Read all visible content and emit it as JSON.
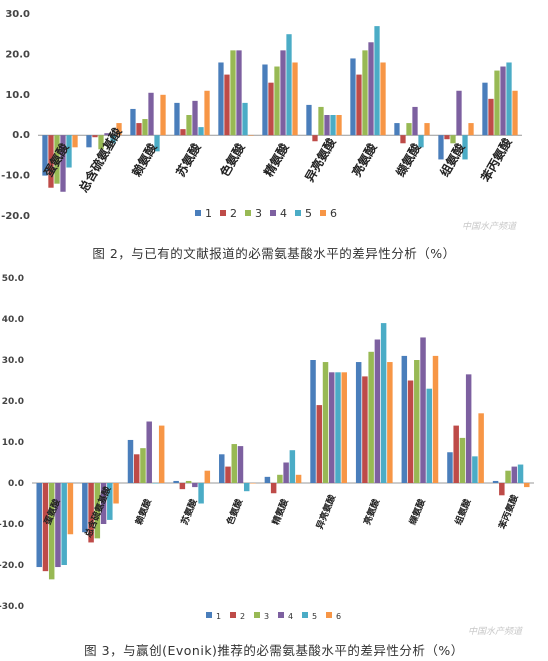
{
  "colors": [
    "#4A7EBB",
    "#BE4B48",
    "#98B954",
    "#7D60A0",
    "#4BACC6",
    "#F79646"
  ],
  "captions": {
    "fig2": "图 2，与已有的文献报道的必需氨基酸水平的差异性分析（%）",
    "fig3": "图 3，与赢创(Evonik)推荐的必需氨基酸水平的差异性分析（%）"
  },
  "watermark": "中国水产频道",
  "chart_data": [
    {
      "type": "bar",
      "title": "",
      "xlabel": "",
      "ylabel": "",
      "ylim": [
        -20,
        30
      ],
      "yticks": [
        "-20.0",
        "-10.0",
        "0.0",
        "10.0",
        "20.0",
        "30.0"
      ],
      "grid": false,
      "legend": "bottom",
      "legend_labels": [
        "1",
        "2",
        "3",
        "4",
        "5",
        "6"
      ],
      "categories": [
        "蛋氨酸",
        "总含硫氨基酸",
        "赖氨酸",
        "苏氨酸",
        "色氨酸",
        "精氨酸",
        "异亮氨酸",
        "亮氨酸",
        "缬氨酸",
        "组氨酸",
        "苯丙氨酸"
      ],
      "series": [
        {
          "values": [
            -10,
            -3,
            6.5,
            8,
            18,
            17.5,
            7.5,
            19,
            3,
            -6,
            13
          ]
        },
        {
          "values": [
            -13,
            -0.5,
            3,
            1.5,
            15,
            13,
            -1.5,
            15,
            -2,
            -1,
            9
          ]
        },
        {
          "values": [
            -12,
            -3.5,
            4,
            5,
            21,
            17,
            7,
            21,
            3,
            -2,
            16
          ]
        },
        {
          "values": [
            -14,
            0.5,
            10.5,
            8.5,
            21,
            21,
            5,
            23,
            7,
            11,
            17
          ]
        },
        {
          "values": [
            -8,
            -2,
            -4,
            2,
            8,
            25,
            5,
            27,
            -3,
            -6,
            18
          ]
        },
        {
          "values": [
            -3,
            3,
            10,
            11,
            0,
            18,
            5,
            18,
            3,
            3,
            11
          ]
        }
      ]
    },
    {
      "type": "bar",
      "title": "",
      "xlabel": "",
      "ylabel": "",
      "ylim": [
        -30,
        50
      ],
      "yticks": [
        "-30.0",
        "-20.0",
        "-10.0",
        "0.0",
        "10.0",
        "20.0",
        "30.0",
        "40.0",
        "50.0"
      ],
      "grid": false,
      "legend": "bottom",
      "legend_labels": [
        "1",
        "2",
        "3",
        "4",
        "5",
        "6"
      ],
      "categories": [
        "蛋氨酸",
        "总含硫氨基酸",
        "赖氨酸",
        "苏氨酸",
        "色氨酸",
        "精氨酸",
        "异亮氨酸",
        "亮氨酸",
        "缬氨酸",
        "组氨酸",
        "苯丙氨酸"
      ],
      "series": [
        {
          "values": [
            -20.5,
            -12,
            10.5,
            0.5,
            7,
            1.5,
            30,
            29.5,
            31,
            7.5,
            0.5
          ]
        },
        {
          "values": [
            -21.5,
            -14.5,
            7,
            -1.5,
            4,
            -2.5,
            19,
            26,
            25,
            14,
            -3
          ]
        },
        {
          "values": [
            -23.5,
            -13.5,
            8.5,
            0.5,
            9.5,
            2,
            29.5,
            32,
            30,
            11,
            3
          ]
        },
        {
          "values": [
            -20.5,
            -10,
            15,
            -1,
            9,
            5,
            27,
            35,
            35.5,
            26.5,
            4
          ]
        },
        {
          "values": [
            -20,
            -9,
            0,
            -5,
            -2,
            8,
            27,
            39,
            23,
            6.5,
            4.5
          ]
        },
        {
          "values": [
            -12.5,
            -5,
            14,
            3,
            0,
            2,
            27,
            29.5,
            31,
            17,
            -1
          ]
        }
      ]
    }
  ]
}
